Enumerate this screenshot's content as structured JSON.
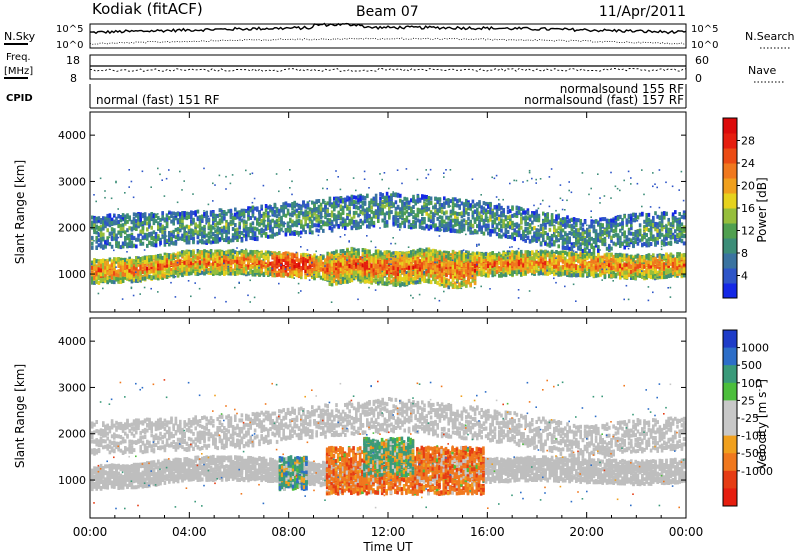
{
  "header": {
    "radar": "Kodiak (fitACF)",
    "beam": "Beam 07",
    "date": "11/Apr/2011"
  },
  "noise_panel": {
    "left_label": "N.Sky",
    "right_label": "N.Search",
    "ytick_top": "10^5",
    "ytick_bottom": "10^0"
  },
  "freq_panel": {
    "left_label_1": "Freq.",
    "left_label_2": "[MHz]",
    "right_label": "Nave",
    "left_ticks": [
      "18",
      "8"
    ],
    "right_ticks": [
      "60",
      "0"
    ]
  },
  "cpid_panel": {
    "label": "CPID",
    "modes": [
      "normal (fast) 151 RF",
      "normalsound 155 RF",
      "normalsound (fast) 157 RF"
    ]
  },
  "x_axis": {
    "label": "Time UT",
    "ticks": [
      "00:00",
      "04:00",
      "08:00",
      "12:00",
      "16:00",
      "20:00",
      "00:00"
    ]
  },
  "chart_data": [
    {
      "type": "heatmap",
      "title": "",
      "xlabel": "Time UT",
      "ylabel": "Slant Range [km]",
      "xlim": [
        0,
        24
      ],
      "ylim": [
        180,
        4500
      ],
      "yticks": [
        "1000",
        "2000",
        "3000",
        "4000"
      ],
      "colorbar": {
        "label": "Power [dB]",
        "range": [
          0,
          32
        ],
        "ticks": [
          "4",
          "8",
          "12",
          "16",
          "20",
          "24",
          "28"
        ],
        "colors": [
          "#1428e6",
          "#2e55c8",
          "#3a73a0",
          "#3c8d78",
          "#50a050",
          "#96be3c",
          "#e6d21e",
          "#f0a01e",
          "#f0781e",
          "#eb4b14",
          "#e61e0f",
          "#dc0a0a"
        ]
      },
      "bands": [
        {
          "name": "main",
          "start": 0,
          "end": 24,
          "center_km": [
            1050,
            1100,
            1250,
            1250,
            1200,
            1100,
            1200,
            1250,
            1200,
            1250,
            1200,
            1150,
            1200
          ],
          "width_km": 500,
          "level": 0.75
        },
        {
          "name": "upper",
          "start": 0,
          "end": 24,
          "center_km": [
            1900,
            1950,
            2000,
            2050,
            2200,
            2300,
            2400,
            2300,
            2200,
            2000,
            1800,
            1950,
            2000
          ],
          "width_km": 700,
          "level": 0.35
        },
        {
          "name": "mid-day",
          "start": 9.5,
          "end": 15.5,
          "center_km": [
            1100,
            1200,
            1150,
            1100,
            1200,
            1050,
            1100
          ],
          "width_km": 700,
          "level": 0.8
        }
      ]
    },
    {
      "type": "heatmap",
      "title": "",
      "xlabel": "Time UT",
      "ylabel": "Slant Range [km]",
      "xlim": [
        0,
        24
      ],
      "ylim": [
        180,
        4500
      ],
      "yticks": [
        "1000",
        "2000",
        "3000",
        "4000"
      ],
      "colorbar": {
        "label": "Velocity [m s^-1]",
        "ticks": [
          "1000",
          "500",
          "100",
          "25",
          "-25",
          "-100",
          "-500",
          "-1000"
        ],
        "colors": [
          "#1e3cc8",
          "#2d6ec8",
          "#3a9a7a",
          "#4cbe3c",
          "#c8c8c8",
          "#c8c8c8",
          "#f0a01e",
          "#f0781e",
          "#e63c14",
          "#e61e0f"
        ]
      },
      "ground_scatter_color": "#bebebe",
      "velocity_regions": [
        {
          "start": 7.6,
          "end": 8.7,
          "range_km": [
            800,
            1500
          ],
          "velocity": 150
        },
        {
          "start": 9.5,
          "end": 15.8,
          "range_km": [
            700,
            1700
          ],
          "velocity": -300
        },
        {
          "start": 11.0,
          "end": 13.0,
          "range_km": [
            1100,
            1900
          ],
          "velocity": 80
        }
      ]
    }
  ]
}
